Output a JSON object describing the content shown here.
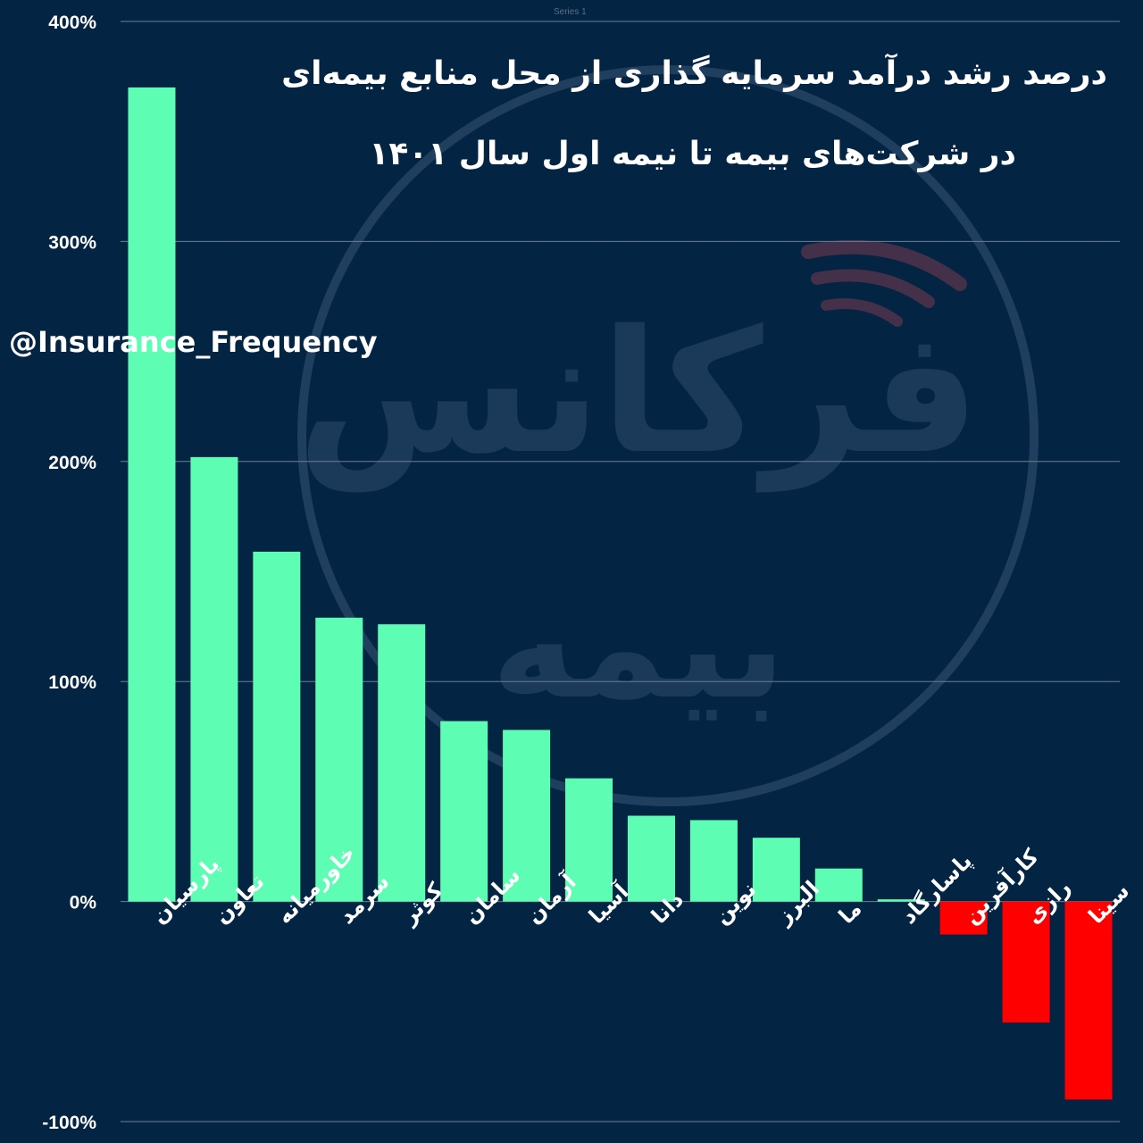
{
  "watermark": {
    "word1": "فرکانس",
    "word2": "بیمه"
  },
  "handle": "@Insurance_Frequency",
  "colors": {
    "background": "#042444",
    "positive": "#5dfdb3",
    "negative": "#ff0000",
    "grid": "#6b7f95",
    "text": "#ffffff",
    "watermark": "#5a7390",
    "watermark_accent": "#7a3a4e"
  },
  "chart_data": {
    "type": "bar",
    "title_line1": "درصد رشد درآمد سرمایه گذاری از محل منابع بیمه‌ای",
    "title_line2": "در شرکت‌های بیمه تا نیمه اول سال ۱۴۰۱",
    "series_name": "Series 1",
    "categories": [
      "پارسیان",
      "تعاون",
      "خاورمیانه",
      "سرمد",
      "کوثر",
      "سامان",
      "آرمان",
      "آسیا",
      "دانا",
      "نوین",
      "البرز",
      "ما",
      "پاسارگاد",
      "کارآفرین",
      "رازی",
      "سینا"
    ],
    "values": [
      370,
      202,
      159,
      129,
      126,
      82,
      78,
      56,
      39,
      37,
      29,
      15,
      1,
      -15,
      -55,
      -90
    ],
    "ylim": [
      -100,
      400
    ],
    "yticks": [
      -100,
      0,
      100,
      200,
      300,
      400
    ],
    "ytick_labels": [
      "-100%",
      "0%",
      "100%",
      "200%",
      "300%",
      "400%"
    ],
    "grid": true,
    "legend": "none"
  }
}
